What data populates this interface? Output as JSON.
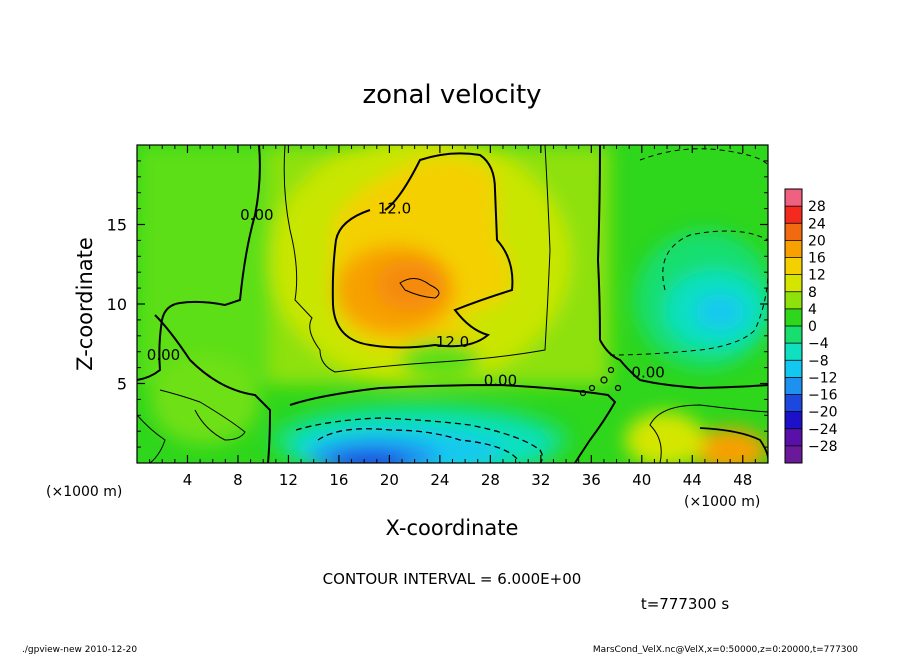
{
  "chart_data": {
    "type": "heatmap",
    "title": "zonal velocity",
    "xlabel": "X-coordinate",
    "ylabel": "Z-coordinate",
    "x_unit_left": "(×1000 m)",
    "x_unit_right": "(×1000 m)",
    "x_ticks": [
      4,
      8,
      12,
      16,
      20,
      24,
      28,
      32,
      36,
      40,
      44,
      48
    ],
    "y_ticks": [
      5,
      10,
      15
    ],
    "xlim": [
      0,
      50
    ],
    "ylim": [
      0,
      20
    ],
    "colorbar": {
      "levels": [
        28,
        24,
        20,
        16,
        12,
        8,
        4,
        0,
        -4,
        -8,
        -12,
        -16,
        -20,
        -24,
        -28
      ],
      "colors": [
        "#f06080",
        "#f52a1e",
        "#f26a10",
        "#f7a000",
        "#f4d000",
        "#d4e600",
        "#8ee10a",
        "#2ed61c",
        "#18de70",
        "#0ee0c0",
        "#12c8f0",
        "#1e90f0",
        "#1c48e0",
        "#1c10c8",
        "#5a10a8",
        "#6a1a98"
      ]
    },
    "contour_labels": [
      {
        "text": "12.0",
        "x": 20.4,
        "z": 16.0
      },
      {
        "text": "12.0",
        "x": 25.0,
        "z": 7.6
      },
      {
        "text": "0.00",
        "x": 9.5,
        "z": 15.6
      },
      {
        "text": "0.00",
        "x": 2.1,
        "z": 6.8
      },
      {
        "text": "0.00",
        "x": 28.8,
        "z": 5.2
      },
      {
        "text": "0.00",
        "x": 40.5,
        "z": 5.7
      }
    ],
    "annotations": {
      "contour_interval": "CONTOUR INTERVAL = 6.000E+00",
      "time": "t=777300 s"
    }
  },
  "footer": {
    "left": "./gpview-new  2010-12-20",
    "right": "MarsCond_VelX.nc@VelX,x=0:50000,z=0:20000,t=777300"
  }
}
